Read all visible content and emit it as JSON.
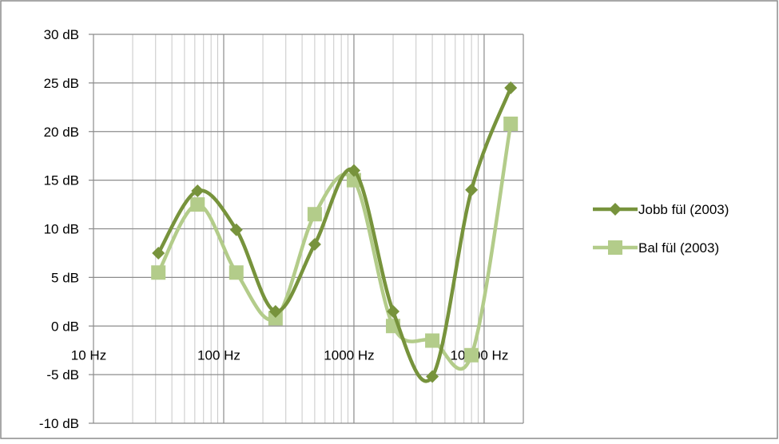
{
  "chart_data": {
    "type": "line",
    "x_scale": "log",
    "xlim": [
      10,
      20000
    ],
    "ylim": [
      -10,
      30
    ],
    "y_step": 5,
    "y_unit": "dB",
    "x_unit": "Hz",
    "x_ticks": [
      "10 Hz",
      "100 Hz",
      "1000 Hz",
      "10000 Hz"
    ],
    "y_ticks": [
      "30 dB",
      "25 dB",
      "20 dB",
      "15 dB",
      "10 dB",
      "5 dB",
      "0 dB",
      "-5 dB",
      "-10 dB"
    ],
    "grid": true,
    "legend_position": "right",
    "series": [
      {
        "name": "Jobb fül (2003)",
        "color": "#77933c",
        "marker": "diamond",
        "x": [
          31.5,
          63,
          125,
          250,
          500,
          1000,
          2000,
          4000,
          8000,
          16000
        ],
        "y": [
          7.5,
          13.9,
          9.9,
          1.5,
          8.4,
          16.0,
          1.5,
          -5.2,
          14.0,
          24.5
        ]
      },
      {
        "name": "Bal fül (2003)",
        "color": "#b3cc8a",
        "marker": "square",
        "x": [
          31.5,
          63,
          125,
          250,
          500,
          1000,
          2000,
          4000,
          8000,
          16000
        ],
        "y": [
          5.5,
          12.5,
          5.5,
          0.8,
          11.5,
          15.0,
          0.0,
          -1.5,
          -3.0,
          20.8
        ]
      }
    ]
  }
}
